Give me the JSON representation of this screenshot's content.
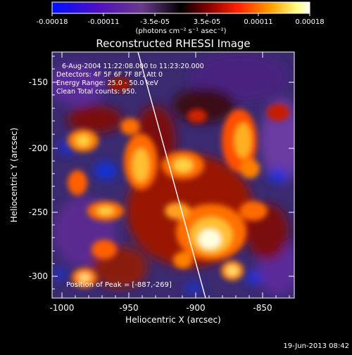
{
  "colorbar": {
    "ticks": [
      "-0.00018",
      "-0.00011",
      "-3.5e-05",
      "3.5e-05",
      "0.00011",
      "0.00018"
    ],
    "units_label": "(photons cm⁻² s⁻¹ asec⁻²)"
  },
  "plot": {
    "title": "Reconstructed RHESSI Image",
    "xlabel": "Heliocentric X (arcsec)",
    "ylabel": "Heliocentric Y (arcsec)",
    "xticks": [
      "-1000",
      "-950",
      "-900",
      "-850"
    ],
    "yticks": [
      "-150",
      "-200",
      "-250",
      "-300"
    ],
    "annotations": {
      "line1": "6-Aug-2004 11:22:08.000 to 11:23:20.000",
      "line2": "Detectors: 4F 5F 6F 7F 8F, Att 0",
      "line3": "Energy Range: 25.0 - 50.0 keV",
      "line4": "Clean    Total counts: 950.",
      "peak": "Position of Peak = [-887,-269]"
    }
  },
  "footer": {
    "timestamp": "19-Jun-2013 08:42"
  },
  "colors": {
    "negative_max": "#0018ff",
    "zero": "#000000",
    "positive_mid": "#ff4000",
    "positive_max": "#ffffff"
  }
}
